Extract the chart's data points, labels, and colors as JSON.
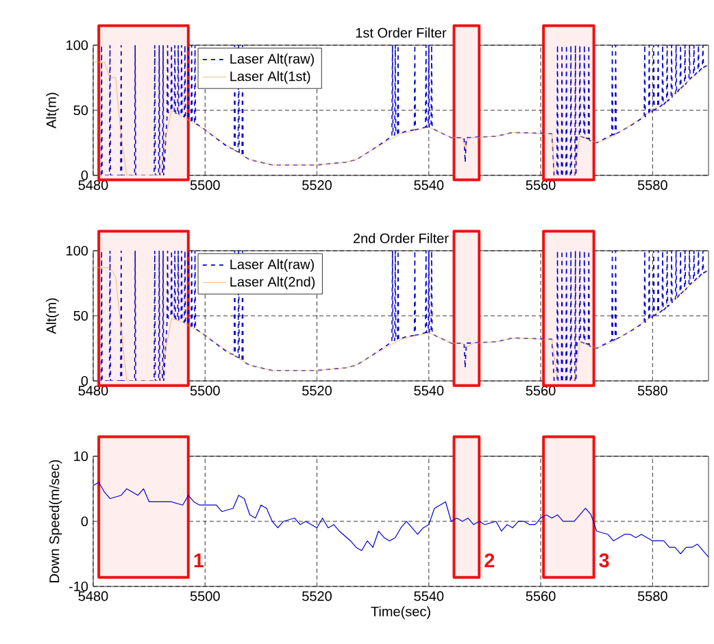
{
  "chart_data": [
    {
      "type": "line",
      "title": "1st Order Filter",
      "ylabel": "Alt(m)",
      "xlim": [
        5480,
        5590
      ],
      "ylim": [
        0,
        100
      ],
      "xticks": [
        5480,
        5500,
        5520,
        5540,
        5560,
        5580
      ],
      "yticks": [
        0,
        50,
        100
      ],
      "grid": true,
      "legend": "top left",
      "series": [
        {
          "name": "Laser Alt(raw)",
          "color": "#0000cc",
          "line_style": "dashed",
          "x": [
            5481.4,
            5481.5,
            5481.6,
            5482.9,
            5483,
            5483.1,
            5484.9,
            5485,
            5485.1,
            5487.4,
            5487.5,
            5487.6,
            5490.9,
            5491,
            5491.1,
            5491.7,
            5491.8,
            5491.9,
            5492.4,
            5492.5,
            5492.6,
            5493.2,
            5493.3,
            5493.4,
            5493.9,
            5494,
            5494.1,
            5494.5,
            5494.6,
            5494.7,
            5495.1,
            5495.2,
            5495.3,
            5495.7,
            5495.8,
            5495.9,
            5496.3,
            5496.4,
            5496.5,
            5496.9,
            5497,
            5497.1,
            5497.5,
            5497.6,
            5497.7,
            5498.1,
            5498.2,
            5498.3,
            5500,
            5504,
            5505.2,
            5505.3,
            5505.4,
            5505.9,
            5506,
            5506.1,
            5506.6,
            5506.7,
            5506.8,
            5508,
            5512,
            5520,
            5525,
            5527,
            5530,
            5533.4,
            5533.5,
            5533.6,
            5533.9,
            5534,
            5534.1,
            5534.4,
            5534.5,
            5534.6,
            5536,
            5537.4,
            5537.5,
            5537.6,
            5539.4,
            5539.5,
            5539.6,
            5539.9,
            5540,
            5540.1,
            5540.4,
            5540.5,
            5540.6,
            5542,
            5544,
            5546.3,
            5546.5,
            5546.7,
            5552,
            5555,
            5562,
            5562.4,
            5562.9,
            5563,
            5563.1,
            5563.7,
            5563.8,
            5563.9,
            5564.5,
            5564.6,
            5564.7,
            5565.3,
            5565.4,
            5565.5,
            5566.1,
            5566.2,
            5566.3,
            5566.5,
            5566.9,
            5567,
            5567.1,
            5567.7,
            5567.8,
            5567.9,
            5568.5,
            5568.6,
            5568.7,
            5570,
            5572.7,
            5572.8,
            5572.9,
            5573.3,
            5573.4,
            5573.5,
            5576,
            5578.5,
            5578.6,
            5578.7,
            5579.3,
            5579.4,
            5579.5,
            5580.1,
            5580.2,
            5580.3,
            5580.9,
            5581,
            5581.1,
            5581.7,
            5581.8,
            5581.9,
            5582.5,
            5582.6,
            5582.7,
            5583.3,
            5583.4,
            5583.5,
            5584.1,
            5584.2,
            5584.3,
            5584.9,
            5585,
            5585.1,
            5585.7,
            5585.8,
            5585.9,
            5586.5,
            5586.6,
            5586.7,
            5587.3,
            5587.4,
            5587.5,
            5588.1,
            5588.2,
            5588.3,
            5588.9,
            5589,
            5589.1,
            5590
          ],
          "values": [
            0,
            100,
            0,
            0,
            100,
            0,
            0,
            100,
            0,
            0,
            100,
            0,
            0,
            100,
            0,
            0,
            100,
            0,
            0,
            100,
            0,
            45,
            100,
            48,
            50,
            100,
            50,
            49,
            100,
            48,
            47,
            100,
            47,
            46,
            100,
            46,
            45,
            100,
            45,
            44,
            100,
            43,
            42,
            100,
            42,
            40,
            100,
            40,
            35,
            22,
            20,
            100,
            19,
            18,
            100,
            17,
            16,
            100,
            15,
            12,
            8,
            8,
            10,
            12,
            20,
            30,
            100,
            31,
            31,
            100,
            32,
            32,
            100,
            32,
            34,
            35,
            100,
            35,
            37,
            100,
            37,
            37,
            100,
            37,
            37,
            100,
            36,
            33,
            29,
            29,
            10,
            29,
            30,
            33,
            32,
            0,
            0,
            100,
            0,
            0,
            100,
            0,
            0,
            100,
            0,
            0,
            100,
            0,
            0,
            100,
            0,
            30,
            30,
            100,
            30,
            29,
            100,
            29,
            28,
            100,
            27,
            25,
            31,
            100,
            31,
            32,
            100,
            32,
            38,
            45,
            100,
            45,
            47,
            100,
            47,
            50,
            100,
            50,
            52,
            100,
            52,
            54,
            100,
            54,
            57,
            100,
            57,
            60,
            100,
            60,
            63,
            100,
            63,
            67,
            100,
            67,
            70,
            100,
            70,
            74,
            100,
            74,
            77,
            100,
            77,
            80,
            100,
            80,
            83,
            100,
            83,
            85
          ]
        },
        {
          "name": "Laser Alt(1st)",
          "color": "#f0a860",
          "line_style": "solid",
          "x": [
            5480,
            5482,
            5483,
            5484,
            5485,
            5486,
            5487,
            5492,
            5493,
            5494,
            5496,
            5500,
            5505,
            5508,
            5512,
            5520,
            5525,
            5527,
            5530,
            5535,
            5540,
            5542,
            5544,
            5546,
            5546.6,
            5547,
            5548,
            5552,
            5555,
            5560,
            5562,
            5562.5,
            5566,
            5567,
            5570,
            5573,
            5580,
            5590
          ],
          "values": [
            87,
            87,
            75,
            75,
            30,
            0,
            0,
            0,
            30,
            50,
            45,
            35,
            20,
            12,
            8,
            8,
            10,
            12,
            20,
            32,
            37,
            33,
            29,
            29,
            20,
            29,
            29,
            30,
            33,
            32,
            32,
            0,
            0,
            30,
            25,
            30,
            50,
            85
          ]
        }
      ],
      "bands": [
        {
          "axis": "x",
          "from": 5481,
          "to": 5497,
          "color": "#ee1111"
        },
        {
          "axis": "x",
          "from": 5544.5,
          "to": 5549,
          "color": "#ee1111"
        },
        {
          "axis": "x",
          "from": 5560.5,
          "to": 5569.5,
          "color": "#ee1111"
        }
      ]
    },
    {
      "type": "line",
      "title": "2nd Order Filter",
      "ylabel": "Alt(m)",
      "xlim": [
        5480,
        5590
      ],
      "ylim": [
        0,
        100
      ],
      "xticks": [
        5480,
        5500,
        5520,
        5540,
        5560,
        5580
      ],
      "yticks": [
        0,
        50,
        100
      ],
      "grid": true,
      "legend": "top left",
      "series": [
        {
          "name": "Laser Alt(raw)",
          "color": "#0000cc",
          "line_style": "dashed",
          "x": [
            5481.4,
            5481.5,
            5481.6,
            5482.9,
            5483,
            5483.1,
            5484.9,
            5485,
            5485.1,
            5487.4,
            5487.5,
            5487.6,
            5490.9,
            5491,
            5491.1,
            5491.7,
            5491.8,
            5491.9,
            5492.4,
            5492.5,
            5492.6,
            5493.2,
            5493.3,
            5493.4,
            5493.9,
            5494,
            5494.1,
            5494.5,
            5494.6,
            5494.7,
            5495.1,
            5495.2,
            5495.3,
            5495.7,
            5495.8,
            5495.9,
            5496.3,
            5496.4,
            5496.5,
            5496.9,
            5497,
            5497.1,
            5497.5,
            5497.6,
            5497.7,
            5498.1,
            5498.2,
            5498.3,
            5500,
            5504,
            5505.2,
            5505.3,
            5505.4,
            5505.9,
            5506,
            5506.1,
            5506.6,
            5506.7,
            5506.8,
            5508,
            5512,
            5520,
            5525,
            5527,
            5530,
            5533.4,
            5533.5,
            5533.6,
            5533.9,
            5534,
            5534.1,
            5534.4,
            5534.5,
            5534.6,
            5536,
            5537.4,
            5537.5,
            5537.6,
            5539.4,
            5539.5,
            5539.6,
            5539.9,
            5540,
            5540.1,
            5540.4,
            5540.5,
            5540.6,
            5542,
            5544,
            5546.3,
            5546.5,
            5546.7,
            5552,
            5555,
            5562,
            5562.4,
            5562.9,
            5563,
            5563.1,
            5563.7,
            5563.8,
            5563.9,
            5564.5,
            5564.6,
            5564.7,
            5565.3,
            5565.4,
            5565.5,
            5566.1,
            5566.2,
            5566.3,
            5566.5,
            5566.9,
            5567,
            5567.1,
            5567.7,
            5567.8,
            5567.9,
            5568.5,
            5568.6,
            5568.7,
            5570,
            5572.7,
            5572.8,
            5572.9,
            5573.3,
            5573.4,
            5573.5,
            5576,
            5578.5,
            5578.6,
            5578.7,
            5579.3,
            5579.4,
            5579.5,
            5580.1,
            5580.2,
            5580.3,
            5580.9,
            5581,
            5581.1,
            5581.7,
            5581.8,
            5581.9,
            5582.5,
            5582.6,
            5582.7,
            5583.3,
            5583.4,
            5583.5,
            5584.1,
            5584.2,
            5584.3,
            5584.9,
            5585,
            5585.1,
            5585.7,
            5585.8,
            5585.9,
            5586.5,
            5586.6,
            5586.7,
            5587.3,
            5587.4,
            5587.5,
            5588.1,
            5588.2,
            5588.3,
            5588.9,
            5589,
            5589.1,
            5590
          ],
          "values": [
            0,
            100,
            0,
            0,
            100,
            0,
            0,
            100,
            0,
            0,
            100,
            0,
            0,
            100,
            0,
            0,
            100,
            0,
            0,
            100,
            0,
            45,
            100,
            48,
            50,
            100,
            50,
            49,
            100,
            48,
            47,
            100,
            47,
            46,
            100,
            46,
            45,
            100,
            45,
            44,
            100,
            43,
            42,
            100,
            42,
            40,
            100,
            40,
            35,
            22,
            20,
            100,
            19,
            18,
            100,
            17,
            16,
            100,
            15,
            12,
            8,
            8,
            10,
            12,
            20,
            30,
            100,
            31,
            31,
            100,
            32,
            32,
            100,
            32,
            34,
            35,
            100,
            35,
            37,
            100,
            37,
            37,
            100,
            37,
            37,
            100,
            36,
            33,
            29,
            29,
            10,
            29,
            30,
            33,
            32,
            0,
            0,
            100,
            0,
            0,
            100,
            0,
            0,
            100,
            0,
            0,
            100,
            0,
            0,
            100,
            0,
            30,
            30,
            100,
            30,
            29,
            100,
            29,
            28,
            100,
            27,
            25,
            31,
            100,
            31,
            32,
            100,
            32,
            38,
            45,
            100,
            45,
            47,
            100,
            47,
            50,
            100,
            50,
            52,
            100,
            52,
            54,
            100,
            54,
            57,
            100,
            57,
            60,
            100,
            60,
            63,
            100,
            63,
            67,
            100,
            67,
            70,
            100,
            70,
            74,
            100,
            74,
            77,
            100,
            77,
            80,
            100,
            80,
            83,
            100,
            83,
            85
          ]
        },
        {
          "name": "Laser Alt(2nd)",
          "color": "#f0a860",
          "line_style": "solid",
          "x": [
            5480,
            5483,
            5484,
            5485,
            5486,
            5487,
            5492,
            5493,
            5494,
            5496,
            5500,
            5505,
            5508,
            5512,
            5520,
            5525,
            5527,
            5530,
            5535,
            5540,
            5542,
            5544,
            5546,
            5546.8,
            5548,
            5552,
            5555,
            5560,
            5562,
            5563,
            5566,
            5567,
            5570,
            5573,
            5580,
            5590
          ],
          "values": [
            87,
            87,
            80,
            40,
            0,
            0,
            0,
            25,
            48,
            45,
            35,
            20,
            12,
            8,
            8,
            10,
            12,
            20,
            32,
            37,
            33,
            29,
            29,
            26,
            29,
            30,
            33,
            32,
            32,
            0,
            0,
            30,
            25,
            30,
            50,
            85
          ]
        }
      ],
      "bands": [
        {
          "axis": "x",
          "from": 5481,
          "to": 5497,
          "color": "#ee1111"
        },
        {
          "axis": "x",
          "from": 5544.5,
          "to": 5549,
          "color": "#ee1111"
        },
        {
          "axis": "x",
          "from": 5560.5,
          "to": 5569.5,
          "color": "#ee1111"
        }
      ]
    },
    {
      "type": "line",
      "xlabel": "Time(sec)",
      "ylabel": "Down Speed(m/sec)",
      "xlim": [
        5480,
        5590
      ],
      "ylim": [
        -10,
        10
      ],
      "xticks": [
        5480,
        5500,
        5520,
        5540,
        5560,
        5580
      ],
      "yticks": [
        -10,
        0,
        10
      ],
      "grid": true,
      "series": [
        {
          "color": "#0000cc",
          "line_style": "solid",
          "x": [
            5480,
            5481,
            5482,
            5483,
            5485,
            5486,
            5487,
            5488,
            5489,
            5490,
            5492,
            5494,
            5496,
            5497,
            5498,
            5499,
            5502,
            5503,
            5505,
            5506,
            5507,
            5508,
            5509,
            5510,
            5511,
            5512,
            5513,
            5514,
            5516,
            5517,
            5518,
            5519,
            5520,
            5521,
            5522,
            5523,
            5524,
            5526,
            5527,
            5528,
            5529,
            5530,
            5531,
            5532,
            5533,
            5534,
            5535,
            5536,
            5537,
            5538,
            5539,
            5540,
            5541,
            5542,
            5543,
            5544,
            5545,
            5546,
            5547,
            5548,
            5549,
            5550,
            5552,
            5553,
            5554,
            5555,
            5556,
            5557,
            5558,
            5559,
            5560,
            5561,
            5562,
            5563,
            5564,
            5566,
            5567,
            5568,
            5569,
            5570,
            5572,
            5573,
            5574,
            5575,
            5576,
            5577,
            5578,
            5580,
            5582,
            5583,
            5584,
            5585,
            5586,
            5587,
            5588,
            5589,
            5590
          ],
          "values": [
            5.5,
            6,
            4.5,
            3.5,
            4,
            5,
            4.5,
            4,
            5,
            3,
            3,
            3,
            2.5,
            4,
            3,
            2.5,
            2.5,
            1.5,
            2,
            4,
            3.5,
            1,
            0.5,
            2.5,
            2,
            0,
            -1,
            0,
            0.5,
            -0.5,
            0,
            -0.5,
            -1,
            0.5,
            -1,
            -0.5,
            -1.5,
            -3,
            -4,
            -4.5,
            -3,
            -4,
            -1.5,
            -2.5,
            -3,
            -2.5,
            -1,
            0,
            -1,
            -2,
            -1,
            -0.5,
            2,
            2.5,
            3,
            0,
            0.5,
            0,
            0.5,
            -0.5,
            0,
            -0.5,
            0,
            -1.5,
            -0.5,
            -1,
            0,
            0,
            -0.5,
            -0.5,
            0.5,
            1,
            0.5,
            1,
            0,
            0,
            1,
            2,
            1,
            -1.5,
            -2,
            -3,
            -2.5,
            -2,
            -2,
            -2.5,
            -2,
            -3,
            -3,
            -4,
            -4,
            -5,
            -4,
            -4,
            -3.5,
            -4.5,
            -5.5
          ]
        }
      ],
      "bands": [
        {
          "axis": "x",
          "from": 5481,
          "to": 5497,
          "color": "#ee1111",
          "label": "1"
        },
        {
          "axis": "x",
          "from": 5544.5,
          "to": 5549,
          "color": "#ee1111",
          "label": "2"
        },
        {
          "axis": "x",
          "from": 5560.5,
          "to": 5569.5,
          "color": "#ee1111",
          "label": "3"
        }
      ]
    }
  ]
}
